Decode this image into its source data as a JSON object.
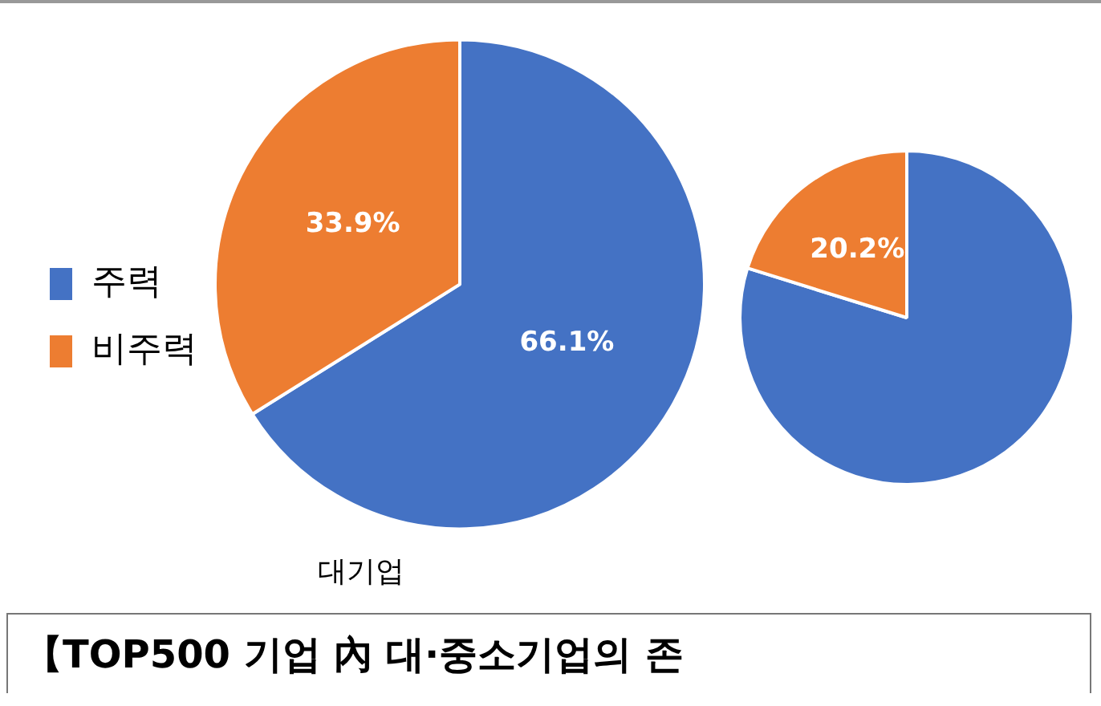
{
  "chart_data": [
    {
      "type": "pie",
      "title": "대기업",
      "categories": [
        "주력",
        "비주력"
      ],
      "values": [
        66.1,
        33.9
      ],
      "colors": [
        "#4472c4",
        "#ed7d31"
      ],
      "value_labels": [
        "66.1%",
        "33.9%"
      ],
      "legend": "left",
      "annotations": [
        "【TOP500 기업 內 대·중소기업의 존"
      ]
    },
    {
      "type": "pie",
      "categories": [
        null,
        null
      ],
      "values": [
        79.8,
        20.2
      ],
      "colors": [
        "#4472c4",
        "#ed7d31"
      ],
      "value_labels": [
        null,
        "20.2%"
      ],
      "legend": false
    }
  ]
}
